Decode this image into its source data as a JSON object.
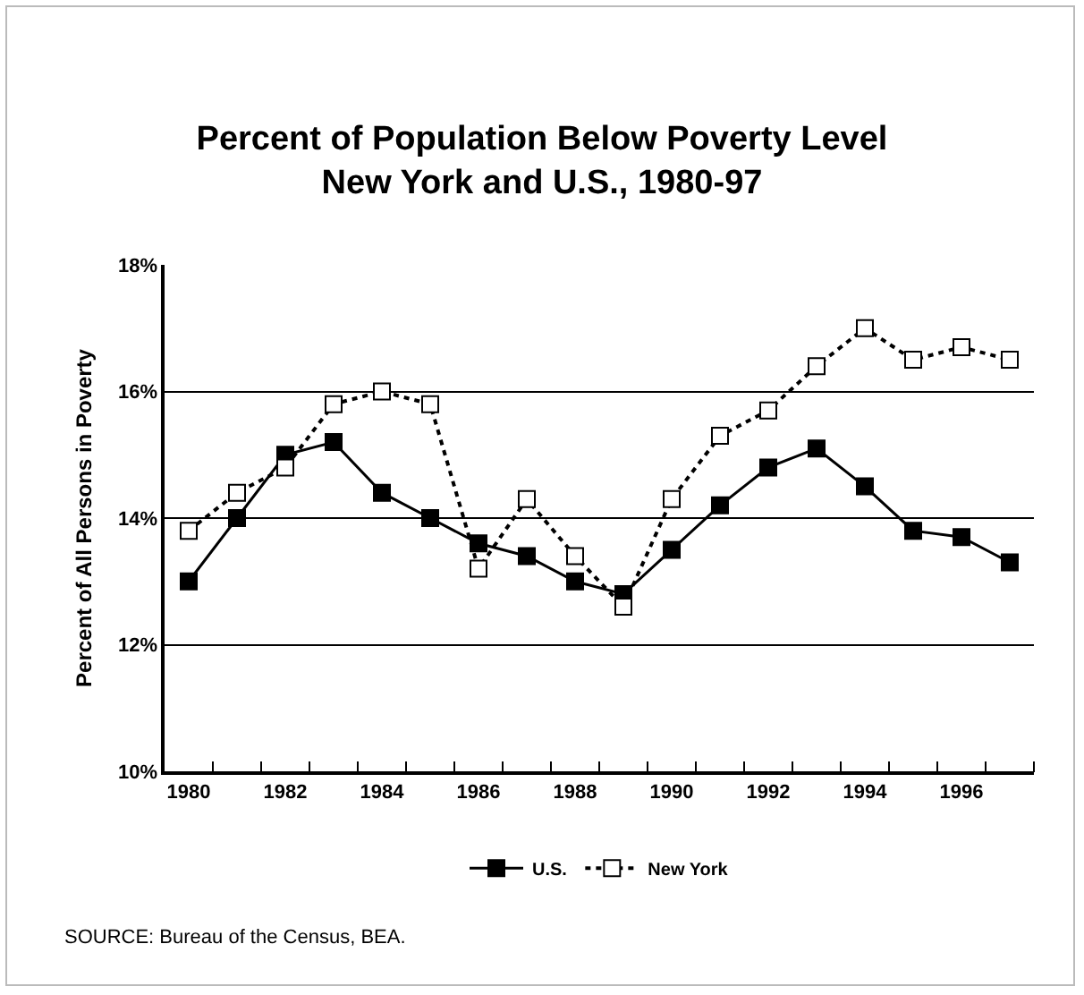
{
  "chart_data": {
    "type": "line",
    "title": "Percent of Population Below Poverty Level\nNew York and U.S., 1980-97",
    "ylabel": "Percent of All Persons in Poverty",
    "categories": [
      "1980",
      null,
      "1982",
      null,
      "1984",
      null,
      "1986",
      null,
      "1988",
      null,
      "1990",
      null,
      "1992",
      null,
      "1994",
      null,
      "1996",
      null
    ],
    "series": [
      {
        "name": "U.S.",
        "color": "#000000",
        "line_style": "solid",
        "values": [
          13.0,
          14.0,
          15.0,
          15.2,
          14.4,
          14.0,
          13.6,
          13.4,
          13.0,
          12.8,
          13.5,
          14.2,
          14.8,
          15.1,
          14.5,
          13.8,
          13.7,
          13.3
        ]
      },
      {
        "name": "New York",
        "color": "#000000",
        "line_style": "dotted",
        "values": [
          13.8,
          14.4,
          14.8,
          15.8,
          16.0,
          15.8,
          13.2,
          14.3,
          13.4,
          12.6,
          14.3,
          15.3,
          15.7,
          16.4,
          17.0,
          16.5,
          16.7,
          16.5
        ]
      }
    ],
    "ylim": [
      10,
      18
    ],
    "yticks": [
      {
        "value": 10,
        "label": "10%"
      },
      {
        "value": 12,
        "label": "12%"
      },
      {
        "value": 14,
        "label": "14%"
      },
      {
        "value": 16,
        "label": "16%"
      },
      {
        "value": 18,
        "label": "18%"
      }
    ],
    "grid": "y",
    "legend": "bottom",
    "marker": "square",
    "annotations": [
      "SOURCE: Bureau of the Census, BEA."
    ]
  }
}
